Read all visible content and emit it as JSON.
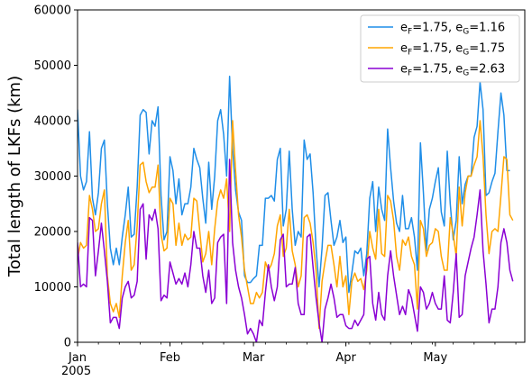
{
  "chart_data": {
    "type": "line",
    "title": "",
    "xlabel": "",
    "ylabel": "Total length of LKFs (km)",
    "x_range": [
      "2005-01-01",
      "2005-05-31"
    ],
    "ylim": [
      0,
      60000
    ],
    "yticks": [
      0,
      10000,
      20000,
      30000,
      40000,
      50000,
      60000
    ],
    "xticks": [
      {
        "date": "2005-01-01",
        "label": "Jan",
        "sublabel": "2005"
      },
      {
        "date": "2005-02-01",
        "label": "Feb",
        "sublabel": ""
      },
      {
        "date": "2005-03-01",
        "label": "Mar",
        "sublabel": ""
      },
      {
        "date": "2005-04-01",
        "label": "Apr",
        "sublabel": ""
      },
      {
        "date": "2005-05-01",
        "label": "May",
        "sublabel": ""
      }
    ],
    "grid": false,
    "legend_position": "top-right",
    "start_date": "2005-01-01",
    "step_days": 1,
    "series": [
      {
        "name": "eF=1.75, eG=1.16",
        "legend": {
          "base1": "e",
          "sub1": "F",
          "mid": "=1.75, ",
          "base2": "e",
          "sub2": "G",
          "tail": "=1.16"
        },
        "color": "#1f8ee8",
        "values": [
          42000,
          30000,
          27500,
          29000,
          38000,
          26000,
          23000,
          27000,
          35000,
          36500,
          25000,
          17000,
          14000,
          17000,
          14000,
          19000,
          23000,
          28000,
          19000,
          19500,
          28000,
          41000,
          42000,
          41500,
          34000,
          40000,
          39000,
          42500,
          26500,
          18500,
          20000,
          33500,
          31000,
          25000,
          29500,
          23000,
          25000,
          25000,
          28000,
          35000,
          33000,
          31500,
          26000,
          21500,
          32500,
          24000,
          30000,
          40000,
          42000,
          37500,
          30000,
          48000,
          35000,
          27500,
          23500,
          22000,
          12000,
          10800,
          10800,
          11500,
          12000,
          17500,
          17500,
          26000,
          26000,
          26500,
          25500,
          33000,
          35000,
          21000,
          24000,
          34500,
          24000,
          17500,
          20000,
          19000,
          36500,
          33000,
          34000,
          27000,
          17000,
          10000,
          17000,
          26500,
          27000,
          22000,
          17500,
          19000,
          22000,
          18000,
          19000,
          9000,
          12500,
          16500,
          16000,
          17000,
          12000,
          16000,
          26000,
          29000,
          20000,
          28000,
          24000,
          22000,
          38500,
          31500,
          25500,
          21500,
          20000,
          26500,
          20500,
          20500,
          22500,
          19000,
          13000,
          36000,
          27000,
          16500,
          24000,
          26000,
          29000,
          31500,
          23500,
          21000,
          34500,
          25000,
          18500,
          22000,
          33500,
          25000,
          28500,
          30000,
          30000,
          37000,
          39000,
          47000,
          42000,
          26500,
          27000,
          29000,
          30500,
          38000,
          45000,
          41000,
          31000,
          31000
        ]
      },
      {
        "name": "eF=1.75, eG=1.75",
        "legend": {
          "base1": "e",
          "sub1": "F",
          "mid": "=1.75, ",
          "base2": "e",
          "sub2": "G",
          "tail": "=1.75"
        },
        "color": "#ffa500",
        "values": [
          15000,
          18000,
          17000,
          17500,
          26500,
          24000,
          20000,
          20500,
          25000,
          27500,
          12000,
          7000,
          5500,
          7000,
          4500,
          12000,
          18000,
          22000,
          13000,
          14000,
          21000,
          32000,
          32500,
          29000,
          27000,
          28000,
          28000,
          32000,
          19500,
          16500,
          17000,
          26000,
          25000,
          17500,
          21500,
          17500,
          19500,
          18500,
          19000,
          26000,
          25500,
          20000,
          14500,
          16000,
          20000,
          14000,
          20500,
          25500,
          27500,
          26000,
          29500,
          20000,
          40000,
          31000,
          23000,
          19000,
          13000,
          10000,
          7000,
          7000,
          9000,
          8000,
          9000,
          14500,
          13000,
          14000,
          16000,
          21000,
          23000,
          15500,
          17000,
          24000,
          16500,
          14000,
          10000,
          12000,
          22500,
          23000,
          21500,
          18000,
          13000,
          2500,
          11000,
          14500,
          17500,
          17500,
          14000,
          10000,
          15500,
          10000,
          12000,
          5000,
          11000,
          12500,
          11000,
          11500,
          9500,
          13000,
          20000,
          17000,
          15000,
          24000,
          16000,
          15500,
          26500,
          25500,
          22000,
          15500,
          13000,
          18500,
          17500,
          19000,
          15500,
          14000,
          6000,
          22000,
          20500,
          15500,
          17500,
          18000,
          20500,
          20000,
          15500,
          13000,
          13000,
          22500,
          19500,
          15500,
          28000,
          21000,
          27000,
          30000,
          30000,
          32000,
          33500,
          40000,
          33500,
          23000,
          16000,
          20000,
          20500,
          20000,
          26500,
          33500,
          33000,
          23000,
          22000
        ]
      },
      {
        "name": "eF=1.75, eG=2.63",
        "legend": {
          "base1": "e",
          "sub1": "F",
          "mid": "=1.75, ",
          "base2": "e",
          "sub2": "G",
          "tail": "=2.63"
        },
        "color": "#8a00d4",
        "values": [
          18000,
          10000,
          10500,
          10000,
          22500,
          22000,
          12000,
          16500,
          21500,
          16500,
          11000,
          3500,
          4500,
          4500,
          2500,
          8000,
          10000,
          11000,
          8000,
          8500,
          11000,
          24000,
          25000,
          15000,
          23000,
          22000,
          24000,
          20500,
          7500,
          8500,
          8000,
          14500,
          12500,
          10500,
          11500,
          10500,
          12500,
          10000,
          14000,
          20000,
          17000,
          17000,
          12000,
          9000,
          13000,
          7000,
          8000,
          18000,
          19000,
          19500,
          7000,
          33000,
          18000,
          13000,
          10000,
          8000,
          5000,
          1500,
          2500,
          1500,
          0,
          4000,
          3000,
          9000,
          14000,
          10000,
          7500,
          10000,
          18500,
          19500,
          10000,
          10500,
          10500,
          13500,
          7000,
          5000,
          5000,
          19000,
          19500,
          13500,
          8000,
          3500,
          0,
          6000,
          8000,
          10500,
          8000,
          4500,
          5000,
          5000,
          3000,
          2500,
          2500,
          4000,
          3000,
          4000,
          5000,
          15000,
          15500,
          7000,
          4000,
          9000,
          5000,
          4000,
          12000,
          16500,
          12000,
          8500,
          5000,
          6500,
          5000,
          9500,
          8000,
          5000,
          2000,
          10000,
          9000,
          6000,
          7000,
          9000,
          7000,
          6000,
          6000,
          12000,
          4000,
          3500,
          9000,
          16000,
          4500,
          5000,
          12000,
          14500,
          17000,
          19000,
          23000,
          27500,
          16500,
          10500,
          3500,
          6000,
          6000,
          10000,
          18000,
          20500,
          18000,
          13000,
          11000
        ]
      }
    ]
  }
}
